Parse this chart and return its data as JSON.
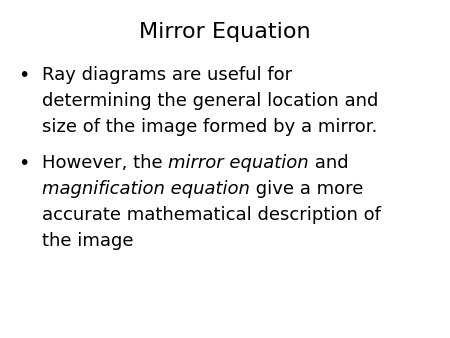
{
  "title": "Mirror Equation",
  "title_fontsize": 16,
  "background_color": "#ffffff",
  "text_color": "#000000",
  "bullet1_line1": "Ray diagrams are useful for",
  "bullet1_line2": "determining the general location and",
  "bullet1_line3": "size of the image formed by a mirror.",
  "bullet2_line1_parts": [
    {
      "text": "However, the ",
      "style": "normal"
    },
    {
      "text": "mirror equation",
      "style": "italic"
    },
    {
      "text": " and",
      "style": "normal"
    }
  ],
  "bullet2_line2_parts": [
    {
      "text": "magnification equation",
      "style": "italic"
    },
    {
      "text": " give a more",
      "style": "normal"
    }
  ],
  "bullet2_line3": "accurate mathematical description of",
  "bullet2_line4": "the image",
  "font_family": "DejaVu Sans",
  "body_fontsize": 13.0,
  "bullet_char": "•"
}
